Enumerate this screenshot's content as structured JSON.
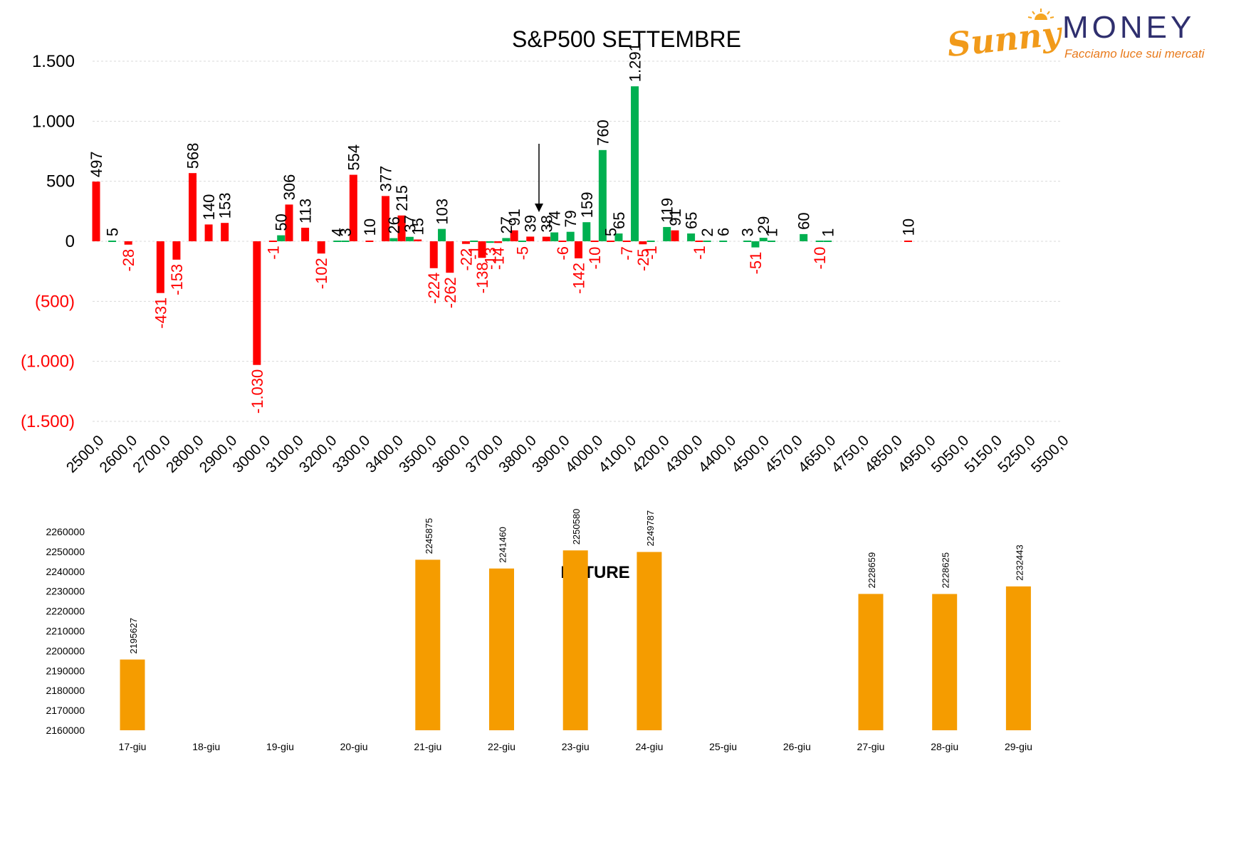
{
  "logo": {
    "brand": "MONEY",
    "script": "Sunny",
    "tagline": "Facciamo luce sui mercati"
  },
  "colors": {
    "positive": "#00b050",
    "negative": "#ff0000",
    "future": "#f59c00",
    "text": "#000000"
  },
  "chart_data": [
    {
      "type": "bar",
      "title": "S&P500 SETTEMBRE",
      "ylim": [
        -1500,
        1500
      ],
      "yticks": [
        "1.500",
        "1.000",
        "500",
        "0",
        "(500)",
        "(1.000)",
        "(1.500)"
      ],
      "ytick_values": [
        1500,
        1000,
        500,
        0,
        -500,
        -1000,
        -1500
      ],
      "categories": [
        "2500,0",
        "2600,0",
        "2700,0",
        "2800,0",
        "2900,0",
        "3000,0",
        "3100,0",
        "3200,0",
        "3300,0",
        "3400,0",
        "3500,0",
        "3600,0",
        "3700,0",
        "3800,0",
        "3900,0",
        "4000,0",
        "4100,0",
        "4200,0",
        "4300,0",
        "4400,0",
        "4500,0",
        "4570,0",
        "4650,0",
        "4750,0",
        "4850,0",
        "4950,0",
        "5050,0",
        "5150,0",
        "5250,0",
        "5500,0"
      ],
      "grid": true,
      "arrow_marker": "3800,0",
      "bars": [
        {
          "x": 2500,
          "value": 497,
          "label": "497",
          "color": "red"
        },
        {
          "x": 2550,
          "value": 5,
          "label": "5",
          "color": "green"
        },
        {
          "x": 2600,
          "value": -28,
          "label": "-28",
          "color": "red"
        },
        {
          "x": 2700,
          "value": -431,
          "label": "-431",
          "color": "red"
        },
        {
          "x": 2750,
          "value": -153,
          "label": "-153",
          "color": "red"
        },
        {
          "x": 2800,
          "value": 568,
          "label": "568",
          "color": "red"
        },
        {
          "x": 2850,
          "value": 140,
          "label": "140",
          "color": "red"
        },
        {
          "x": 2900,
          "value": 153,
          "label": "153",
          "color": "red"
        },
        {
          "x": 3000,
          "value": -1030,
          "label": "-1.030",
          "color": "red"
        },
        {
          "x": 3050,
          "value": -1,
          "label": "-1",
          "color": "red"
        },
        {
          "x": 3075,
          "value": 50,
          "label": "50",
          "color": "green"
        },
        {
          "x": 3100,
          "value": 306,
          "label": "306",
          "color": "red"
        },
        {
          "x": 3150,
          "value": 113,
          "label": "113",
          "color": "red"
        },
        {
          "x": 3200,
          "value": -102,
          "label": "-102",
          "color": "red"
        },
        {
          "x": 3250,
          "value": 4,
          "label": "4",
          "color": "green"
        },
        {
          "x": 3275,
          "value": 3,
          "label": "3",
          "color": "green"
        },
        {
          "x": 3300,
          "value": 554,
          "label": "554",
          "color": "red"
        },
        {
          "x": 3350,
          "value": 10,
          "label": "10",
          "color": "red"
        },
        {
          "x": 3400,
          "value": 377,
          "label": "377",
          "color": "red"
        },
        {
          "x": 3425,
          "value": 26,
          "label": "26",
          "color": "green"
        },
        {
          "x": 3450,
          "value": 215,
          "label": "215",
          "color": "red"
        },
        {
          "x": 3475,
          "value": 37,
          "label": "37",
          "color": "green"
        },
        {
          "x": 3500,
          "value": 15,
          "label": "15",
          "color": "red"
        },
        {
          "x": 3550,
          "value": -224,
          "label": "-224",
          "color": "red"
        },
        {
          "x": 3575,
          "value": 103,
          "label": "103",
          "color": "green"
        },
        {
          "x": 3600,
          "value": -262,
          "label": "-262",
          "color": "red"
        },
        {
          "x": 3650,
          "value": -22,
          "label": "-22",
          "color": "red"
        },
        {
          "x": 3675,
          "value": -1,
          "label": "-1",
          "color": "green"
        },
        {
          "x": 3700,
          "value": -138,
          "label": "-138",
          "color": "red"
        },
        {
          "x": 3725,
          "value": -13,
          "label": "-13",
          "color": "green"
        },
        {
          "x": 3750,
          "value": -14,
          "label": "-14",
          "color": "red"
        },
        {
          "x": 3775,
          "value": 27,
          "label": "27",
          "color": "green"
        },
        {
          "x": 3800,
          "value": 91,
          "label": "91",
          "color": "red"
        },
        {
          "x": 3825,
          "value": -5,
          "label": "-5",
          "color": "green"
        },
        {
          "x": 3850,
          "value": 39,
          "label": "39",
          "color": "red"
        },
        {
          "x": 3900,
          "value": 38,
          "label": "38",
          "color": "red"
        },
        {
          "x": 3925,
          "value": 74,
          "label": "74",
          "color": "green"
        },
        {
          "x": 3950,
          "value": -6,
          "label": "-6",
          "color": "red"
        },
        {
          "x": 3975,
          "value": 79,
          "label": "79",
          "color": "green"
        },
        {
          "x": 4000,
          "value": -142,
          "label": "-142",
          "color": "red"
        },
        {
          "x": 4025,
          "value": 159,
          "label": "159",
          "color": "green"
        },
        {
          "x": 4050,
          "value": -10,
          "label": "-10",
          "color": "red"
        },
        {
          "x": 4075,
          "value": 760,
          "label": "760",
          "color": "green"
        },
        {
          "x": 4100,
          "value": 5,
          "label": "5",
          "color": "red"
        },
        {
          "x": 4125,
          "value": 65,
          "label": "65",
          "color": "green"
        },
        {
          "x": 4150,
          "value": -7,
          "label": "-7",
          "color": "red"
        },
        {
          "x": 4175,
          "value": 1291,
          "label": "1.291",
          "color": "green"
        },
        {
          "x": 4200,
          "value": -25,
          "label": "-25",
          "color": "red"
        },
        {
          "x": 4225,
          "value": -1,
          "label": "-1",
          "color": "green"
        },
        {
          "x": 4275,
          "value": 119,
          "label": "119",
          "color": "green"
        },
        {
          "x": 4300,
          "value": 91,
          "label": "91",
          "color": "red"
        },
        {
          "x": 4350,
          "value": 65,
          "label": "65",
          "color": "green"
        },
        {
          "x": 4375,
          "value": -1,
          "label": "-1",
          "color": "red"
        },
        {
          "x": 4400,
          "value": 2,
          "label": "2",
          "color": "green"
        },
        {
          "x": 4450,
          "value": 6,
          "label": "6",
          "color": "green"
        },
        {
          "x": 4525,
          "value": 3,
          "label": "3",
          "color": "green"
        },
        {
          "x": 4550,
          "value": -51,
          "label": "-51",
          "color": "green"
        },
        {
          "x": 4575,
          "value": 29,
          "label": "29",
          "color": "green"
        },
        {
          "x": 4600,
          "value": 1,
          "label": "1",
          "color": "green"
        },
        {
          "x": 4700,
          "value": 60,
          "label": "60",
          "color": "green"
        },
        {
          "x": 4750,
          "value": -10,
          "label": "-10",
          "color": "green"
        },
        {
          "x": 4775,
          "value": 1,
          "label": "1",
          "color": "green"
        },
        {
          "x": 5025,
          "value": 10,
          "label": "10",
          "color": "red"
        }
      ]
    },
    {
      "type": "bar",
      "title": "FUTURE",
      "ylim": [
        2160000,
        2260000
      ],
      "yticks": [
        "2260000",
        "2250000",
        "2240000",
        "2230000",
        "2220000",
        "2210000",
        "2200000",
        "2190000",
        "2180000",
        "2170000",
        "2160000"
      ],
      "categories": [
        "17-giu",
        "18-giu",
        "19-giu",
        "20-giu",
        "21-giu",
        "22-giu",
        "23-giu",
        "24-giu",
        "25-giu",
        "26-giu",
        "27-giu",
        "28-giu",
        "29-giu"
      ],
      "values": [
        2195627,
        null,
        null,
        null,
        2245875,
        2241460,
        2250580,
        2249787,
        null,
        null,
        2228659,
        2228625,
        2232443
      ],
      "labels": [
        "2195627",
        "",
        "",
        "",
        "2245875",
        "2241460",
        "2250580",
        "2249787",
        "",
        "",
        "2228659",
        "2228625",
        "2232443"
      ]
    }
  ]
}
